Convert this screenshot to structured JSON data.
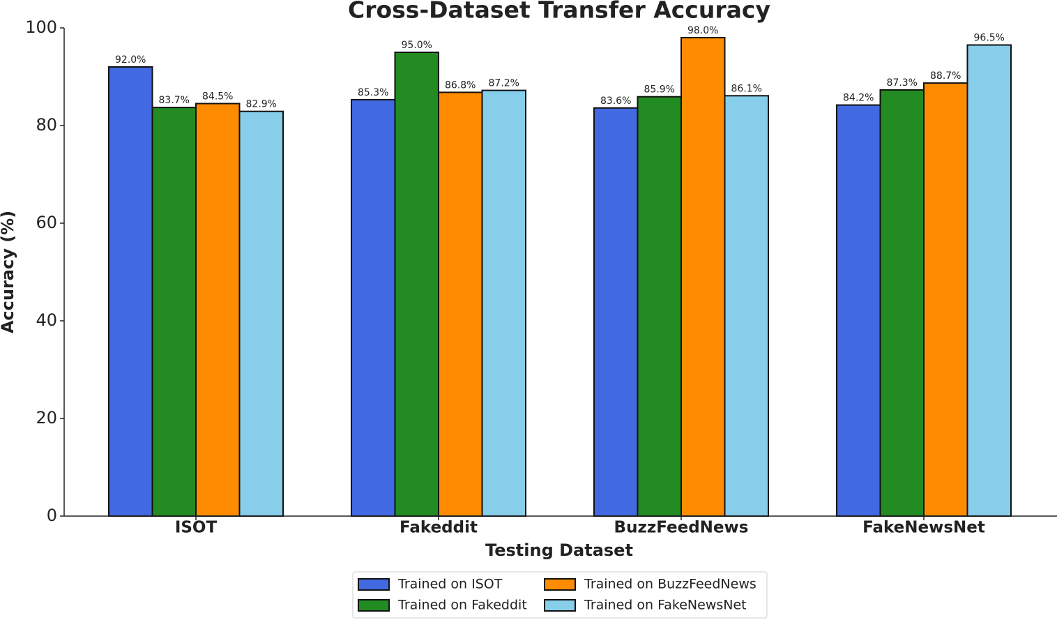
{
  "chart_data": {
    "type": "bar",
    "title": "Cross-Dataset Transfer Accuracy",
    "xlabel": "Testing Dataset",
    "ylabel": "Accuracy (%)",
    "categories": [
      "ISOT",
      "Fakeddit",
      "BuzzFeedNews",
      "FakeNewsNet"
    ],
    "series": [
      {
        "name": "Trained on ISOT",
        "color": "#4169e1",
        "values": [
          92.0,
          85.3,
          83.6,
          84.2
        ],
        "value_labels": [
          "92.0%",
          "85.3%",
          "83.6%",
          "84.2%"
        ]
      },
      {
        "name": "Trained on Fakeddit",
        "color": "#228b22",
        "values": [
          83.7,
          95.0,
          85.9,
          87.3
        ],
        "value_labels": [
          "83.7%",
          "95.0%",
          "85.9%",
          "87.3%"
        ]
      },
      {
        "name": "Trained on BuzzFeedNews",
        "color": "#ff8c00",
        "values": [
          84.5,
          86.8,
          98.0,
          88.7
        ],
        "value_labels": [
          "84.5%",
          "86.8%",
          "98.0%",
          "88.7%"
        ]
      },
      {
        "name": "Trained on FakeNewsNet",
        "color": "#87ceeb",
        "values": [
          82.9,
          87.2,
          86.1,
          96.5
        ],
        "value_labels": [
          "82.9%",
          "87.2%",
          "86.1%",
          "96.5%"
        ]
      }
    ],
    "ylim": [
      0,
      100
    ],
    "yticks": [
      0,
      20,
      40,
      60,
      80,
      100
    ],
    "grid": false,
    "legend": "bottom"
  }
}
